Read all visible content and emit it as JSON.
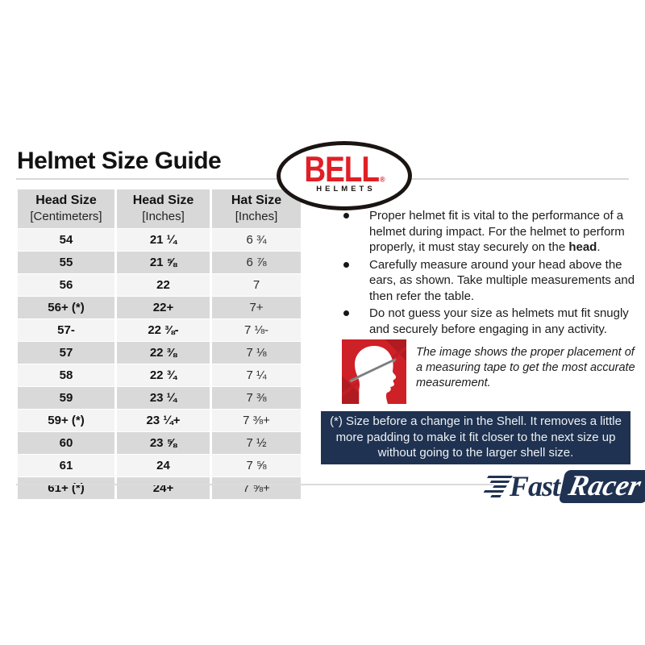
{
  "title": "Helmet Size Guide",
  "bell_logo": {
    "brand": "BELL",
    "reg": "®",
    "sub": "HELMETS"
  },
  "chart_data": {
    "type": "table",
    "title": "Helmet Size Guide",
    "columns": [
      {
        "line1": "Head Size",
        "line2": "[Centimeters]"
      },
      {
        "line1": "Head Size",
        "line2": "[Inches]"
      },
      {
        "line1": "Hat Size",
        "line2": "[Inches]"
      }
    ],
    "rows": [
      [
        "54",
        "21 ¼",
        "6 ¾"
      ],
      [
        "55",
        "21 ⅝",
        "6 ⅞"
      ],
      [
        "56",
        "22",
        "7"
      ],
      [
        "56+ (*)",
        "22+",
        "7+"
      ],
      [
        "57-",
        "22 ⅜-",
        "7 ⅛-"
      ],
      [
        "57",
        "22 ⅜",
        "7 ⅛"
      ],
      [
        "58",
        "22 ¾",
        "7 ¼"
      ],
      [
        "59",
        "23 ¼",
        "7 ⅜"
      ],
      [
        "59+ (*)",
        "23 ¼+",
        "7 ⅜+"
      ],
      [
        "60",
        "23 ⅝",
        "7 ½"
      ],
      [
        "61",
        "24",
        "7 ⅝"
      ],
      [
        "61+ (*)",
        "24+",
        "7 ⅝+"
      ]
    ]
  },
  "bullets": [
    {
      "segments": [
        {
          "text": "Proper helmet fit is vital to the performance of a helmet during impact. For the helmet to perform properly, it must stay securely on the ",
          "bold": false
        },
        {
          "text": "head",
          "bold": true
        },
        {
          "text": ".",
          "bold": false
        }
      ]
    },
    {
      "segments": [
        {
          "text": "Carefully measure around your head above the ears, as shown. Take multiple measurements and then refer the table.",
          "bold": false
        }
      ]
    },
    {
      "segments": [
        {
          "text": "Do not guess your size as helmets mut fit snugly and securely before engaging in any activity.",
          "bold": false
        }
      ]
    }
  ],
  "figure": {
    "caption": "The image shows the proper placement of a measuring tape to get the most accurate measurement."
  },
  "note": {
    "lines": [
      "(*) Size before a change in the Shell. It removes a little",
      "more padding to make it fit closer to the next size up",
      "without going to the larger shell size."
    ]
  },
  "footer_logo": {
    "fast": "Fast",
    "racer": "Racer"
  },
  "colors": {
    "bell_red": "#e01f26",
    "figure_red": "#ce2027",
    "figure_red_dark": "#b01b21",
    "navy": "#1f3251",
    "row_light": "#f4f4f4",
    "row_dark": "#d9d9d9",
    "divider_gray": "#d9d9d9"
  }
}
